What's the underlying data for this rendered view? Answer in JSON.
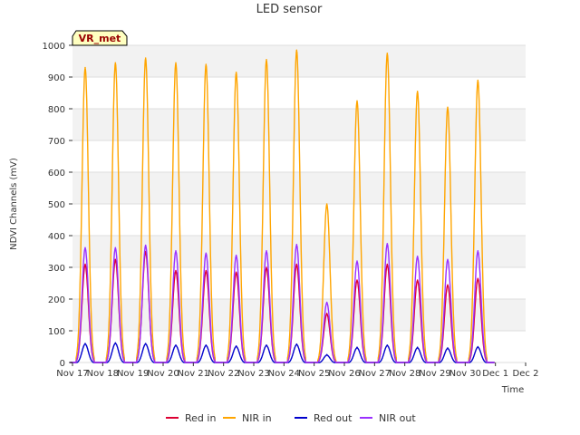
{
  "chart_data": {
    "type": "line",
    "title": "LED sensor",
    "xlabel": "Time",
    "ylabel": "NDVI Channels (mV)",
    "ylim": [
      0,
      1000
    ],
    "yticks": [
      0,
      100,
      200,
      300,
      400,
      500,
      600,
      700,
      800,
      900,
      1000
    ],
    "xlim": [
      17,
      32
    ],
    "xticks": [
      {
        "pos": 17,
        "label": "Nov 17"
      },
      {
        "pos": 18,
        "label": "Nov 18"
      },
      {
        "pos": 19,
        "label": "Nov 19"
      },
      {
        "pos": 20,
        "label": "Nov 20"
      },
      {
        "pos": 21,
        "label": "Nov 21"
      },
      {
        "pos": 22,
        "label": "Nov 22"
      },
      {
        "pos": 23,
        "label": "Nov 23"
      },
      {
        "pos": 24,
        "label": "Nov 24"
      },
      {
        "pos": 25,
        "label": "Nov 25"
      },
      {
        "pos": 26,
        "label": "Nov 26"
      },
      {
        "pos": 27,
        "label": "Nov 27"
      },
      {
        "pos": 28,
        "label": "Nov 28"
      },
      {
        "pos": 29,
        "label": "Nov 29"
      },
      {
        "pos": 30,
        "label": "Nov 30"
      },
      {
        "pos": 31,
        "label": "Dec 1"
      },
      {
        "pos": 32,
        "label": "Dec 2"
      }
    ],
    "site_badge": "VR_met",
    "grid": "horizontal bands",
    "legend_position": "bottom",
    "day_peak_times": [
      17.42,
      18.42,
      19.42,
      20.42,
      21.42,
      22.42,
      23.42,
      24.42,
      25.42,
      26.42,
      27.42,
      28.42,
      29.42,
      30.42
    ],
    "series": [
      {
        "name": "Red in",
        "color": "#dd0033",
        "peaks": [
          310,
          325,
          350,
          290,
          290,
          285,
          300,
          310,
          155,
          260,
          310,
          260,
          245,
          265
        ]
      },
      {
        "name": "NIR in",
        "color": "#ffa500",
        "peaks": [
          930,
          945,
          960,
          945,
          940,
          915,
          955,
          985,
          500,
          825,
          975,
          855,
          805,
          890
        ]
      },
      {
        "name": "Red out",
        "color": "#0000cc",
        "peaks": [
          60,
          62,
          60,
          55,
          55,
          52,
          55,
          58,
          25,
          48,
          55,
          48,
          46,
          50
        ]
      },
      {
        "name": "NIR out",
        "color": "#9b30ff",
        "peaks": [
          362,
          362,
          370,
          352,
          345,
          338,
          352,
          372,
          190,
          320,
          375,
          335,
          325,
          352
        ]
      }
    ]
  }
}
